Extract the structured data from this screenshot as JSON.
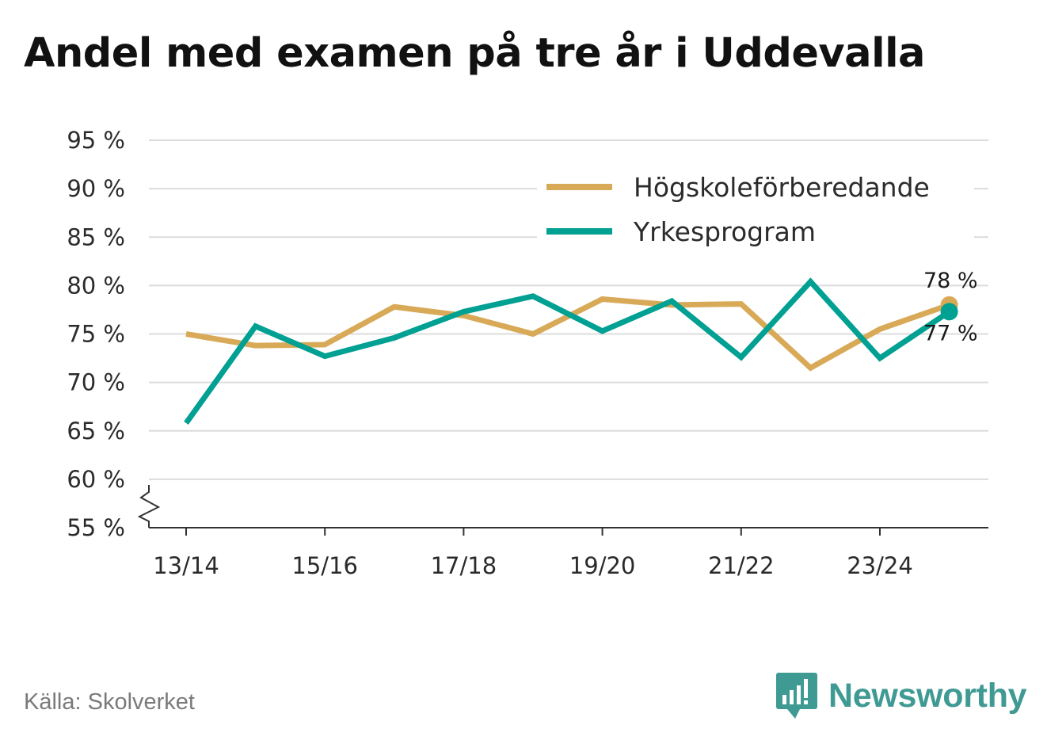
{
  "chart_data": {
    "type": "line",
    "title": "Andel med examen på tre år i Uddevalla",
    "xlabel": "",
    "ylabel": "",
    "x": [
      "13/14",
      "14/15",
      "15/16",
      "16/17",
      "17/18",
      "18/19",
      "19/20",
      "20/21",
      "21/22",
      "22/23",
      "23/24",
      "24/25"
    ],
    "x_tick_labels": [
      "13/14",
      "15/16",
      "17/18",
      "19/20",
      "21/22",
      "23/24"
    ],
    "y_ticks": [
      55,
      60,
      65,
      70,
      75,
      80,
      85,
      90,
      95
    ],
    "y_tick_labels": [
      "55 %",
      "60 %",
      "65 %",
      "70 %",
      "75 %",
      "80 %",
      "85 %",
      "90 %",
      "95 %"
    ],
    "ylim": [
      55,
      95
    ],
    "y_axis_break": true,
    "grid": true,
    "legend_position": "top-right",
    "series": [
      {
        "name": "Högskoleförberedande",
        "color": "#d8aa58",
        "values": [
          75.0,
          73.8,
          73.9,
          77.8,
          76.9,
          75.0,
          78.6,
          78.0,
          78.1,
          71.5,
          75.5,
          78.0
        ],
        "end_label": "78 %"
      },
      {
        "name": "Yrkesprogram",
        "color": "#00a092",
        "values": [
          65.8,
          75.8,
          72.7,
          74.6,
          77.3,
          78.9,
          75.3,
          78.4,
          72.6,
          80.4,
          72.5,
          77.3
        ],
        "end_label": "77 %"
      }
    ]
  },
  "footer": {
    "source": "Källa: Skolverket",
    "brand": "Newsworthy",
    "brand_color": "#3f9a93",
    "brand_icon": "bar-chart-speech-bubble-icon"
  }
}
